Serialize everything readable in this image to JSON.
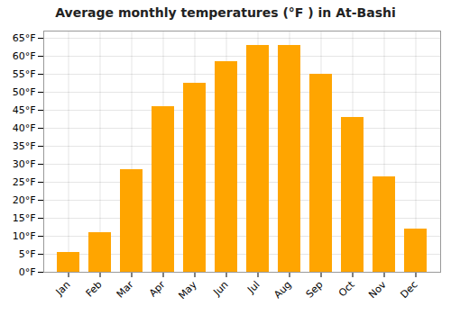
{
  "chart_data": {
    "type": "bar",
    "title": "Average monthly temperatures (°F ) in At-Bashi",
    "categories": [
      "Jan",
      "Feb",
      "Mar",
      "Apr",
      "May",
      "Jun",
      "Jul",
      "Aug",
      "Sep",
      "Oct",
      "Nov",
      "Dec"
    ],
    "values": [
      5.5,
      11,
      28.5,
      46,
      52.5,
      58.5,
      63,
      63,
      55,
      43,
      26.5,
      12
    ],
    "color": "#FFA500",
    "ylim": [
      0,
      67
    ],
    "yticks": [
      {
        "value": 0,
        "label": "0°F"
      },
      {
        "value": 5,
        "label": "5°F"
      },
      {
        "value": 10,
        "label": "10°F"
      },
      {
        "value": 15,
        "label": "15°F"
      },
      {
        "value": 20,
        "label": "20°F"
      },
      {
        "value": 25,
        "label": "25°F"
      },
      {
        "value": 30,
        "label": "30°F"
      },
      {
        "value": 35,
        "label": "35°F"
      },
      {
        "value": 40,
        "label": "40°F"
      },
      {
        "value": 45,
        "label": "45°F"
      },
      {
        "value": 50,
        "label": "50°F"
      },
      {
        "value": 55,
        "label": "55°F"
      },
      {
        "value": 60,
        "label": "60°F"
      },
      {
        "value": 65,
        "label": "65°F"
      }
    ],
    "grid": true
  }
}
